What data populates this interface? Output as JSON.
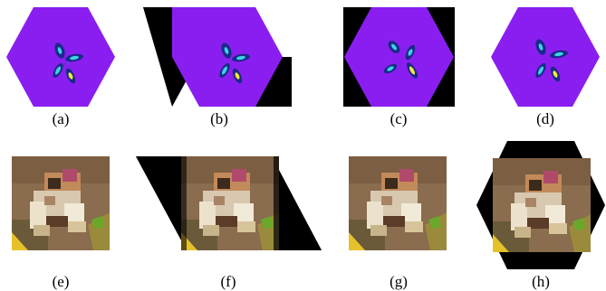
{
  "figure": {
    "captions": {
      "a": "(a)",
      "b": "(b)",
      "c": "(c)",
      "d": "(d)",
      "e": "(e)",
      "f": "(f)",
      "g": "(g)",
      "h": "(h)"
    },
    "colors": {
      "background": "#ffffff",
      "black_fill": "#000000",
      "hex_purple": "#8a1ef0",
      "hex_blob_cyan": "#3cd2e6",
      "hex_blob_yellow": "#f2ea3a",
      "hex_blob_dark": "#1a2a8a",
      "frog_brown": "#7a5a3c",
      "frog_light": "#d8c8b0",
      "frog_dark": "#3c2a1c"
    }
  }
}
